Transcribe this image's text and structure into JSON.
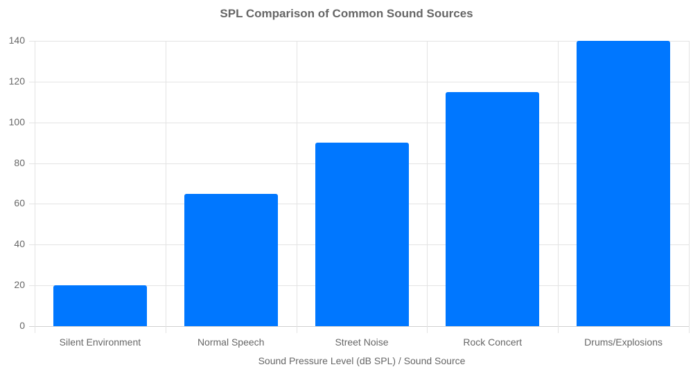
{
  "chart_data": {
    "type": "bar",
    "title": "SPL Comparison of Common Sound Sources",
    "xlabel": "Sound Pressure Level (dB SPL) / Sound Source",
    "ylabel": "",
    "categories": [
      "Silent Environment",
      "Normal Speech",
      "Street Noise",
      "Rock Concert",
      "Drums/Explosions"
    ],
    "values": [
      20,
      65,
      90,
      115,
      140
    ],
    "ylim": [
      0,
      140
    ],
    "yticks": [
      0,
      20,
      40,
      60,
      80,
      100,
      120,
      140
    ],
    "grid": true,
    "legend": null,
    "bar_color": "#0077ff"
  }
}
